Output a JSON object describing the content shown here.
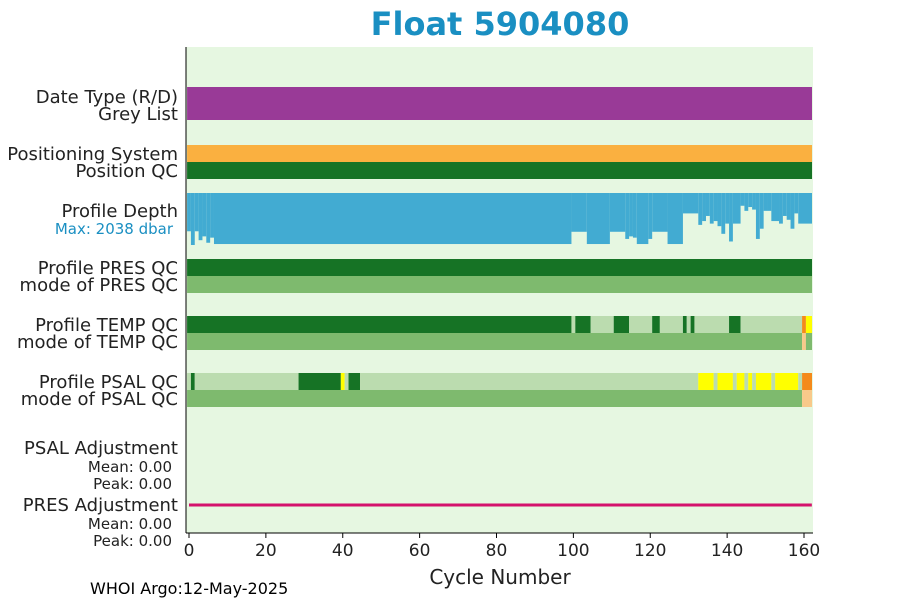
{
  "chart_data": {
    "type": "bar",
    "title": "Float 5904080",
    "xlabel": "Cycle Number",
    "xlim": [
      -0.5,
      162.5
    ],
    "xticks": [
      0,
      20,
      40,
      60,
      80,
      100,
      120,
      140,
      160
    ],
    "footer": "WHOI Argo:12-May-2025",
    "colors": {
      "background": "#e6f7e1",
      "title": "#1a8fc2",
      "purple": "#993a97",
      "orange": "#fab040",
      "dark_green": "#167325",
      "med_green": "#7eba6e",
      "light_green": "#bbdcaf",
      "yellow": "#ffff00",
      "qc_orange": "#f48a1b",
      "qc_peach": "#f8c98a",
      "depth_blue": "#42abd2",
      "pres_line": "#d4136c",
      "max_depth_label": "#1a8fc2"
    },
    "row_labels": {
      "date_type": "Date Type (R/D)",
      "grey_list": "Grey List",
      "positioning_system": "Positioning System",
      "position_qc": "Position QC",
      "profile_depth": "Profile Depth",
      "max_depth": "Max: 2038 dbar",
      "pres_qc": "Profile PRES QC",
      "pres_mode": "mode of PRES QC",
      "temp_qc": "Profile TEMP QC",
      "temp_mode": "mode of TEMP QC",
      "psal_qc": "Profile PSAL QC",
      "psal_mode": "mode of PSAL QC",
      "psal_adj": "PSAL Adjustment",
      "psal_mean": "Mean: 0.00",
      "psal_peak": "Peak: 0.00",
      "pres_adj": "PRES Adjustment",
      "pres_mean": "Mean: 0.00",
      "pres_peak": "Peak: 0.00"
    },
    "date_type": [
      {
        "from": 0,
        "to": 162,
        "color": "purple"
      }
    ],
    "grey_list": [],
    "positioning_system": [
      {
        "from": 0,
        "to": 162,
        "color": "orange"
      }
    ],
    "position_qc": [
      {
        "from": 0,
        "to": 162,
        "color": "dark_green"
      }
    ],
    "pres_qc": [
      {
        "from": 0,
        "to": 162,
        "color": "dark_green"
      }
    ],
    "pres_mode": [
      {
        "from": 0,
        "to": 162,
        "color": "med_green"
      }
    ],
    "temp_qc": [
      {
        "from": 0,
        "to": 99,
        "color": "dark_green"
      },
      {
        "from": 100,
        "to": 100,
        "color": "light_green"
      },
      {
        "from": 101,
        "to": 104,
        "color": "dark_green"
      },
      {
        "from": 105,
        "to": 110,
        "color": "light_green"
      },
      {
        "from": 111,
        "to": 114,
        "color": "dark_green"
      },
      {
        "from": 115,
        "to": 120,
        "color": "light_green"
      },
      {
        "from": 121,
        "to": 122,
        "color": "dark_green"
      },
      {
        "from": 123,
        "to": 128,
        "color": "light_green"
      },
      {
        "from": 129,
        "to": 129,
        "color": "dark_green"
      },
      {
        "from": 130,
        "to": 130,
        "color": "light_green"
      },
      {
        "from": 131,
        "to": 131,
        "color": "dark_green"
      },
      {
        "from": 132,
        "to": 140,
        "color": "light_green"
      },
      {
        "from": 141,
        "to": 143,
        "color": "dark_green"
      },
      {
        "from": 144,
        "to": 159,
        "color": "light_green"
      },
      {
        "from": 160,
        "to": 160,
        "color": "qc_orange"
      },
      {
        "from": 161,
        "to": 162,
        "color": "yellow"
      }
    ],
    "temp_mode": [
      {
        "from": 0,
        "to": 159,
        "color": "med_green"
      },
      {
        "from": 160,
        "to": 160,
        "color": "qc_peach"
      },
      {
        "from": 161,
        "to": 162,
        "color": "med_green"
      }
    ],
    "psal_qc": [
      {
        "from": 0,
        "to": 0,
        "color": "light_green"
      },
      {
        "from": 1,
        "to": 1,
        "color": "dark_green"
      },
      {
        "from": 2,
        "to": 28,
        "color": "light_green"
      },
      {
        "from": 29,
        "to": 39,
        "color": "dark_green"
      },
      {
        "from": 40,
        "to": 40,
        "color": "yellow"
      },
      {
        "from": 41,
        "to": 41,
        "color": "light_green"
      },
      {
        "from": 42,
        "to": 44,
        "color": "dark_green"
      },
      {
        "from": 45,
        "to": 132,
        "color": "light_green"
      },
      {
        "from": 133,
        "to": 136,
        "color": "yellow"
      },
      {
        "from": 137,
        "to": 137,
        "color": "light_green"
      },
      {
        "from": 138,
        "to": 141,
        "color": "yellow"
      },
      {
        "from": 142,
        "to": 142,
        "color": "light_green"
      },
      {
        "from": 143,
        "to": 144,
        "color": "yellow"
      },
      {
        "from": 145,
        "to": 145,
        "color": "light_green"
      },
      {
        "from": 146,
        "to": 146,
        "color": "yellow"
      },
      {
        "from": 147,
        "to": 147,
        "color": "light_green"
      },
      {
        "from": 148,
        "to": 151,
        "color": "yellow"
      },
      {
        "from": 152,
        "to": 152,
        "color": "light_green"
      },
      {
        "from": 153,
        "to": 158,
        "color": "yellow"
      },
      {
        "from": 159,
        "to": 159,
        "color": "light_green"
      },
      {
        "from": 160,
        "to": 162,
        "color": "qc_orange"
      }
    ],
    "psal_mode": [
      {
        "from": 0,
        "to": 159,
        "color": "med_green"
      },
      {
        "from": 160,
        "to": 162,
        "color": "qc_peach"
      }
    ],
    "profile_depth_dbar_max": 2038,
    "profile_depth": [
      {
        "from": 0,
        "to": 0,
        "depth": 1500
      },
      {
        "from": 1,
        "to": 1,
        "depth": 2038
      },
      {
        "from": 2,
        "to": 2,
        "depth": 1500
      },
      {
        "from": 3,
        "to": 3,
        "depth": 1850
      },
      {
        "from": 4,
        "to": 4,
        "depth": 1700
      },
      {
        "from": 5,
        "to": 5,
        "depth": 1950
      },
      {
        "from": 6,
        "to": 6,
        "depth": 1750
      },
      {
        "from": 7,
        "to": 99,
        "depth": 2000
      },
      {
        "from": 100,
        "to": 103,
        "depth": 1520
      },
      {
        "from": 104,
        "to": 109,
        "depth": 2000
      },
      {
        "from": 110,
        "to": 113,
        "depth": 1520
      },
      {
        "from": 114,
        "to": 114,
        "depth": 1800
      },
      {
        "from": 115,
        "to": 115,
        "depth": 1700
      },
      {
        "from": 116,
        "to": 116,
        "depth": 1750
      },
      {
        "from": 117,
        "to": 119,
        "depth": 2000
      },
      {
        "from": 120,
        "to": 120,
        "depth": 1800
      },
      {
        "from": 121,
        "to": 124,
        "depth": 1520
      },
      {
        "from": 125,
        "to": 128,
        "depth": 2000
      },
      {
        "from": 129,
        "to": 132,
        "depth": 800
      },
      {
        "from": 133,
        "to": 133,
        "depth": 1250
      },
      {
        "from": 134,
        "to": 134,
        "depth": 1100
      },
      {
        "from": 135,
        "to": 135,
        "depth": 900
      },
      {
        "from": 136,
        "to": 136,
        "depth": 1200
      },
      {
        "from": 137,
        "to": 137,
        "depth": 1100
      },
      {
        "from": 138,
        "to": 138,
        "depth": 1300
      },
      {
        "from": 139,
        "to": 139,
        "depth": 1600
      },
      {
        "from": 140,
        "to": 140,
        "depth": 1200
      },
      {
        "from": 141,
        "to": 141,
        "depth": 1900
      },
      {
        "from": 142,
        "to": 143,
        "depth": 1200
      },
      {
        "from": 144,
        "to": 144,
        "depth": 500
      },
      {
        "from": 145,
        "to": 145,
        "depth": 700
      },
      {
        "from": 146,
        "to": 146,
        "depth": 550
      },
      {
        "from": 147,
        "to": 147,
        "depth": 650
      },
      {
        "from": 148,
        "to": 148,
        "depth": 1800
      },
      {
        "from": 149,
        "to": 149,
        "depth": 1400
      },
      {
        "from": 150,
        "to": 150,
        "depth": 700
      },
      {
        "from": 151,
        "to": 151,
        "depth": 700
      },
      {
        "from": 152,
        "to": 153,
        "depth": 1100
      },
      {
        "from": 154,
        "to": 154,
        "depth": 1200
      },
      {
        "from": 155,
        "to": 155,
        "depth": 900
      },
      {
        "from": 156,
        "to": 156,
        "depth": 1050
      },
      {
        "from": 157,
        "to": 157,
        "depth": 1400
      },
      {
        "from": 158,
        "to": 158,
        "depth": 800
      },
      {
        "from": 159,
        "to": 162,
        "depth": 1200
      }
    ],
    "pres_adjustment": {
      "from": 0,
      "to": 161,
      "value": 0.0
    }
  }
}
